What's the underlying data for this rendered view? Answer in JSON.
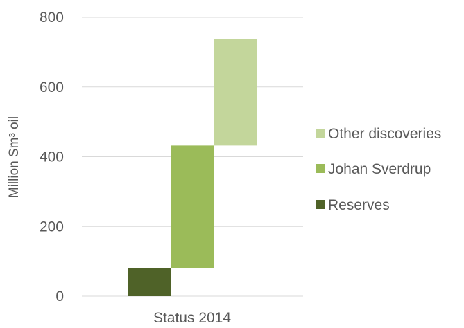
{
  "chart_data": {
    "type": "bar",
    "subtype": "stacked-waterfall",
    "categories": [
      "Status 2014"
    ],
    "ylabel": "Million Sm³ oil",
    "xlabel": "",
    "ylim": [
      0,
      800
    ],
    "yticks": [
      0,
      200,
      400,
      600,
      800
    ],
    "grid": true,
    "legend_position": "right",
    "series": [
      {
        "name": "Reserves",
        "start": 0,
        "end": 80,
        "color": "#4f6228"
      },
      {
        "name": "Johan Sverdrup",
        "start": 80,
        "end": 432,
        "color": "#9bbb59"
      },
      {
        "name": "Other discoveries",
        "start": 432,
        "end": 738,
        "color": "#c3d69b"
      }
    ],
    "legend_order": [
      "Other discoveries",
      "Johan Sverdrup",
      "Reserves"
    ]
  }
}
